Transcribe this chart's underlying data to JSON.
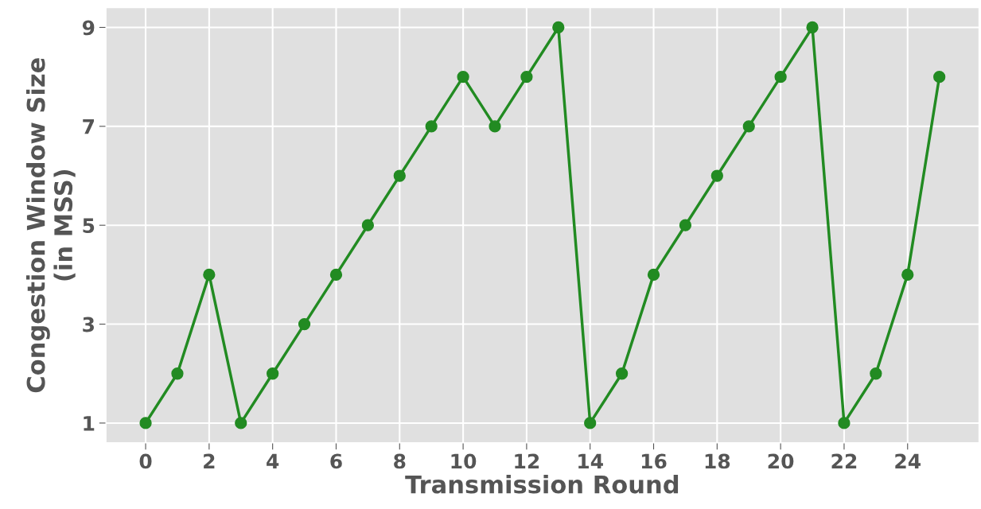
{
  "chart_data": {
    "type": "line",
    "xlabel": "Transmission Round",
    "ylabel": "Congestion Window Size\n(in MSS)",
    "x": [
      0,
      1,
      2,
      3,
      4,
      5,
      6,
      7,
      8,
      9,
      10,
      11,
      12,
      13,
      14,
      15,
      16,
      17,
      18,
      19,
      20,
      21,
      22,
      23,
      24,
      25
    ],
    "series": [
      {
        "color": "#228b22",
        "values": [
          1,
          2,
          4,
          1,
          2,
          3,
          4,
          5,
          6,
          7,
          8,
          7,
          8,
          9,
          1,
          2,
          4,
          5,
          6,
          7,
          8,
          9,
          1,
          2,
          4,
          8
        ]
      }
    ],
    "xlim": [
      -1.25,
      26.25
    ],
    "xticks": [
      0,
      2,
      4,
      6,
      8,
      10,
      12,
      14,
      16,
      18,
      20,
      22,
      24
    ],
    "ylim": [
      0.6,
      9.4
    ],
    "yticks": [
      1,
      3,
      5,
      7,
      9
    ],
    "grid": true,
    "marker": "circle",
    "line_style": "solid"
  }
}
